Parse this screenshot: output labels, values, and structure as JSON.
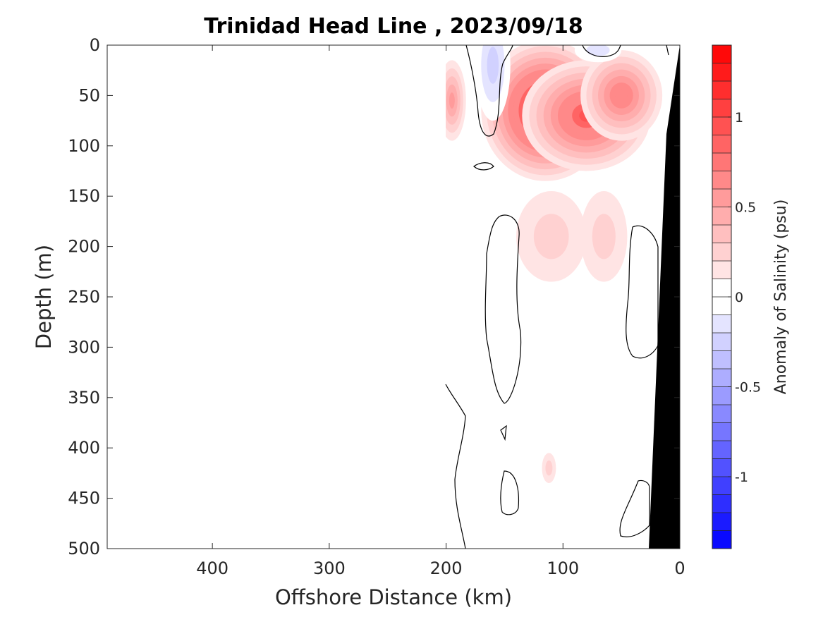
{
  "chart_data": {
    "type": "heatmap",
    "title": "Trinidad Head Line , 2023/09/18",
    "xlabel": "Offshore Distance (km)",
    "ylabel": "Depth (m)",
    "xlim": [
      490,
      0
    ],
    "ylim": [
      0,
      500
    ],
    "x_direction": "reversed",
    "y_direction": "reversed (depth increases downward)",
    "x_ticks": [
      400,
      300,
      200,
      100,
      0
    ],
    "x_tick_labels": [
      "400",
      "300",
      "200",
      "100",
      "0"
    ],
    "y_ticks": [
      0,
      50,
      100,
      150,
      200,
      250,
      300,
      350,
      400,
      450,
      500
    ],
    "y_tick_labels": [
      "0",
      "50",
      "100",
      "150",
      "200",
      "250",
      "300",
      "350",
      "400",
      "450",
      "500"
    ],
    "colorbar": {
      "label": "Anomaly of Salinity (psu)",
      "range": [
        -1.4,
        1.4
      ],
      "levels": 28,
      "ticks": [
        1,
        0.5,
        0,
        -0.5,
        -1
      ],
      "tick_labels": [
        "1",
        "0.5",
        "0",
        "-0.5",
        "-1"
      ],
      "low_color": "#0000ff",
      "zero_color": "#ffffff",
      "high_color": "#ff0000"
    },
    "data_extent_km": [
      0,
      200
    ],
    "shelf_bathymetry": [
      {
        "x": 0,
        "y": 0
      },
      {
        "x": 10,
        "y": 90
      },
      {
        "x": 25,
        "y": 500
      }
    ],
    "anomaly_features": [
      {
        "x": 115,
        "y": 65,
        "value": 1.2,
        "rx": 55,
        "ry": 70
      },
      {
        "x": 80,
        "y": 70,
        "value": 0.9,
        "rx": 55,
        "ry": 55
      },
      {
        "x": 50,
        "y": 50,
        "value": 0.7,
        "rx": 35,
        "ry": 45
      },
      {
        "x": 195,
        "y": 55,
        "value": 0.5,
        "rx": 12,
        "ry": 40
      },
      {
        "x": 110,
        "y": 190,
        "value": 0.15,
        "rx": 30,
        "ry": 45
      },
      {
        "x": 65,
        "y": 190,
        "value": 0.15,
        "rx": 20,
        "ry": 45
      },
      {
        "x": 112,
        "y": 420,
        "value": 0.15,
        "rx": 6,
        "ry": 15
      },
      {
        "x": 160,
        "y": 20,
        "value": -0.25,
        "rx": 15,
        "ry": 55
      },
      {
        "x": 70,
        "y": 5,
        "value": -0.15,
        "rx": 20,
        "ry": 12
      }
    ]
  },
  "colors": {
    "contour": "#000000",
    "bathymetry": "#000000",
    "axis": "#262626"
  }
}
